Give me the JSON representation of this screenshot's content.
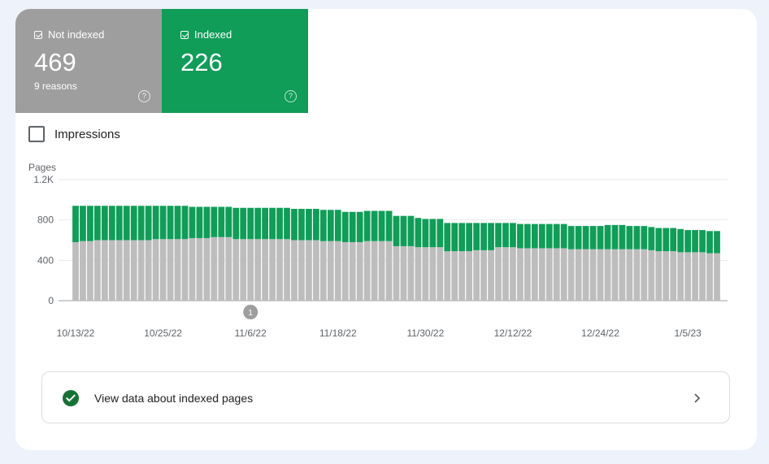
{
  "tiles": [
    {
      "label": "Not indexed",
      "value": "469",
      "sub": "9 reasons",
      "help": "?"
    },
    {
      "label": "Indexed",
      "value": "226",
      "help": "?"
    }
  ],
  "impressions_label": "Impressions",
  "link": {
    "text": "View data about indexed pages"
  },
  "colors": {
    "not_indexed": "#bdbdbd",
    "indexed": "#0f9d58",
    "tile_not_indexed": "#9e9e9e",
    "tile_indexed": "#0f9d58"
  },
  "chart_data": {
    "type": "bar",
    "stacked": true,
    "ylabel": "Pages",
    "ylim": [
      0,
      1200
    ],
    "yticks": [
      "0",
      "400",
      "800",
      "1.2K"
    ],
    "ytick_values": [
      0,
      400,
      800,
      1200
    ],
    "grid": true,
    "xtick_labels": [
      "10/13/22",
      "10/25/22",
      "11/6/22",
      "11/18/22",
      "11/30/22",
      "12/12/22",
      "12/24/22",
      "1/5/23"
    ],
    "xtick_bar_index": [
      0,
      12,
      24,
      36,
      48,
      60,
      72,
      84
    ],
    "annotation": {
      "label": "1",
      "bar_index": 24
    },
    "series": [
      {
        "name": "Not indexed",
        "values": [
          580,
          590,
          590,
          600,
          600,
          600,
          600,
          600,
          600,
          600,
          600,
          610,
          610,
          610,
          610,
          610,
          620,
          620,
          620,
          630,
          630,
          630,
          610,
          610,
          610,
          610,
          610,
          610,
          610,
          610,
          600,
          600,
          600,
          600,
          590,
          590,
          590,
          580,
          580,
          580,
          590,
          590,
          590,
          590,
          540,
          540,
          540,
          530,
          530,
          530,
          530,
          490,
          490,
          490,
          490,
          500,
          500,
          500,
          530,
          530,
          530,
          520,
          520,
          520,
          520,
          520,
          520,
          520,
          510,
          510,
          510,
          510,
          510,
          510,
          510,
          510,
          510,
          510,
          510,
          500,
          490,
          490,
          490,
          480,
          480,
          480,
          480,
          470,
          470
        ]
      },
      {
        "name": "Indexed",
        "values": [
          360,
          350,
          350,
          340,
          340,
          340,
          340,
          340,
          340,
          340,
          340,
          330,
          330,
          330,
          330,
          330,
          310,
          310,
          310,
          300,
          300,
          300,
          310,
          310,
          310,
          310,
          310,
          310,
          310,
          310,
          310,
          310,
          310,
          310,
          310,
          310,
          310,
          300,
          300,
          300,
          300,
          300,
          300,
          300,
          300,
          300,
          300,
          290,
          280,
          280,
          280,
          280,
          280,
          280,
          280,
          270,
          270,
          270,
          240,
          240,
          240,
          240,
          240,
          240,
          240,
          240,
          240,
          240,
          230,
          230,
          230,
          230,
          230,
          240,
          240,
          240,
          230,
          230,
          230,
          230,
          230,
          230,
          230,
          230,
          220,
          220,
          220,
          220,
          220
        ]
      }
    ]
  }
}
